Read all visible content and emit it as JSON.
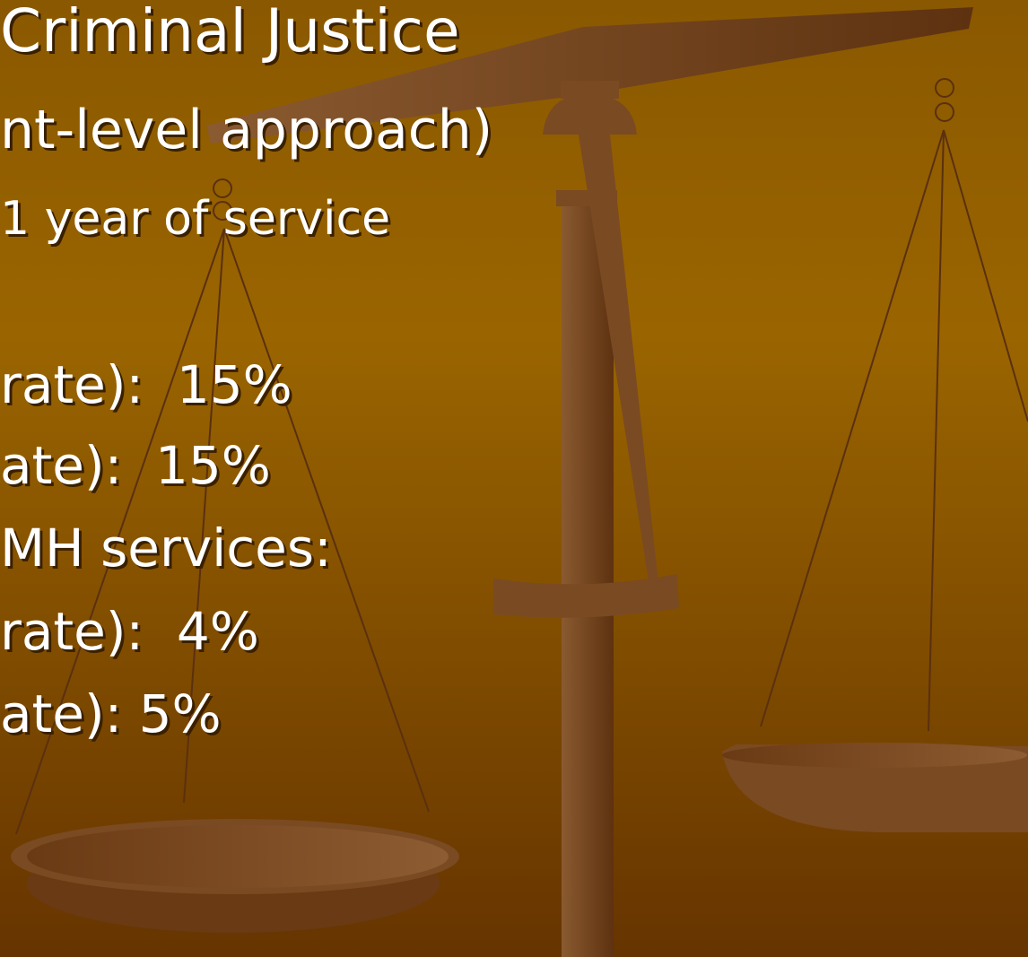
{
  "slide": {
    "title": "Criminal Justice",
    "subtitle": "nt-level approach)",
    "lines": [
      "1 year of service",
      "rate):  15%",
      "ate):  15%",
      "MH services:",
      "rate):  4%",
      "ate): 5%"
    ]
  }
}
